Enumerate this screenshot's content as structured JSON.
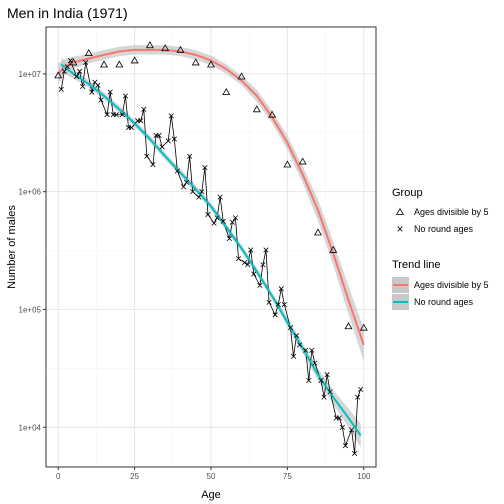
{
  "chart_data": {
    "type": "scatter",
    "title": "Men in India (1971)",
    "xlabel": "Age",
    "ylabel": "Number of males",
    "y_scale": "log10",
    "xlim": [
      -4,
      104
    ],
    "ylim": [
      4600,
      25000000
    ],
    "grid": true,
    "x_ticks": [
      {
        "value": 0,
        "label": "0"
      },
      {
        "value": 25,
        "label": "25"
      },
      {
        "value": 50,
        "label": "50"
      },
      {
        "value": 75,
        "label": "75"
      },
      {
        "value": 100,
        "label": "100"
      }
    ],
    "y_ticks": [
      {
        "value": 10000,
        "label": "1e+04"
      },
      {
        "value": 100000,
        "label": "1e+05"
      },
      {
        "value": 1000000,
        "label": "1e+06"
      },
      {
        "value": 10000000,
        "label": "1e+07"
      }
    ],
    "points_divisible_by_5": {
      "x": [
        0,
        5,
        10,
        15,
        20,
        25,
        30,
        35,
        40,
        45,
        50,
        55,
        60,
        65,
        70,
        75,
        80,
        85,
        90,
        95,
        100
      ],
      "y": [
        9700000,
        12500000,
        15000000,
        12000000,
        12000000,
        13000000,
        17500000,
        16500000,
        16000000,
        12500000,
        12000000,
        7000000,
        9500000,
        5000000,
        4500000,
        1700000,
        1800000,
        450000,
        320000,
        72000,
        70000
      ]
    },
    "points_no_round_ages": {
      "x": [
        1,
        2,
        3,
        4,
        6,
        7,
        8,
        9,
        11,
        12,
        13,
        14,
        16,
        17,
        18,
        19,
        21,
        22,
        23,
        24,
        26,
        27,
        28,
        29,
        31,
        32,
        33,
        34,
        36,
        37,
        38,
        39,
        41,
        42,
        43,
        44,
        46,
        47,
        48,
        49,
        51,
        52,
        53,
        54,
        56,
        57,
        58,
        59,
        61,
        62,
        63,
        64,
        66,
        67,
        68,
        69,
        71,
        72,
        73,
        74,
        76,
        77,
        78,
        79,
        81,
        82,
        83,
        84,
        86,
        87,
        88,
        89,
        91,
        92,
        93,
        94,
        96,
        97,
        98,
        99
      ],
      "y": [
        7400000,
        10500000,
        11500000,
        13000000,
        9500000,
        10500000,
        7800000,
        12500000,
        7000000,
        8500000,
        8000000,
        6000000,
        4500000,
        7000000,
        4500000,
        4500000,
        4500000,
        6500000,
        3500000,
        3500000,
        4000000,
        4000000,
        5000000,
        2000000,
        1700000,
        3000000,
        3000000,
        2400000,
        2700000,
        4400000,
        2800000,
        1500000,
        1100000,
        1200000,
        2000000,
        1000000,
        900000,
        1000000,
        1600000,
        640000,
        540000,
        600000,
        900000,
        560000,
        400000,
        550000,
        600000,
        270000,
        250000,
        240000,
        320000,
        200000,
        160000,
        240000,
        320000,
        115000,
        90000,
        110000,
        150000,
        110000,
        70000,
        40000,
        60000,
        50000,
        45000,
        25000,
        45000,
        35000,
        25000,
        18000,
        28000,
        20000,
        12000,
        12000,
        10000,
        7000,
        9500,
        6000,
        18000,
        21000
      ]
    },
    "trend_divisible_by_5": {
      "x": [
        0,
        2,
        5,
        10,
        15,
        20,
        25,
        30,
        35,
        40,
        45,
        50,
        55,
        60,
        65,
        70,
        75,
        80,
        85,
        90,
        95,
        100
      ],
      "y": [
        10000000,
        11500000,
        12500000,
        13500000,
        14500000,
        15500000,
        16000000,
        16000000,
        16000000,
        15500000,
        14500000,
        13000000,
        11000000,
        8800000,
        6500000,
        4300000,
        2600000,
        1400000,
        700000,
        300000,
        120000,
        50000
      ],
      "band_width_decades": [
        0.09,
        0.06,
        0.05,
        0.04,
        0.04,
        0.04,
        0.04,
        0.04,
        0.04,
        0.04,
        0.04,
        0.04,
        0.04,
        0.04,
        0.05,
        0.05,
        0.06,
        0.07,
        0.09,
        0.1,
        0.12,
        0.14
      ]
    },
    "trend_no_round_ages": {
      "x": [
        1,
        5,
        10,
        15,
        20,
        25,
        30,
        35,
        40,
        45,
        50,
        55,
        60,
        65,
        70,
        75,
        80,
        85,
        90,
        95,
        99
      ],
      "y": [
        12000000,
        10000000,
        8200000,
        6500000,
        5000000,
        3800000,
        2800000,
        2000000,
        1450000,
        1050000,
        750000,
        500000,
        330000,
        210000,
        130000,
        78000,
        47000,
        28000,
        18000,
        12000,
        8500
      ],
      "band_width_decades": [
        0.06,
        0.04,
        0.03,
        0.03,
        0.03,
        0.03,
        0.03,
        0.03,
        0.03,
        0.03,
        0.03,
        0.03,
        0.03,
        0.03,
        0.03,
        0.04,
        0.04,
        0.05,
        0.06,
        0.08,
        0.1
      ]
    },
    "legend_group": {
      "title": "Group",
      "items": [
        {
          "label": "Ages divisible by 5",
          "marker": "triangle"
        },
        {
          "label": "No round ages",
          "marker": "cross"
        }
      ]
    },
    "legend_trend": {
      "title": "Trend line",
      "items": [
        {
          "label": "Ages divisible by 5",
          "color": "#f8766d"
        },
        {
          "label": "No round ages",
          "color": "#00bfc4"
        }
      ]
    },
    "colors": {
      "panel": "#ffffff",
      "grid_major": "#e6e6e6",
      "grid_minor": "#f2f2f2",
      "frame": "#333333",
      "band": "#c8c8c8",
      "points": "#000000"
    }
  }
}
